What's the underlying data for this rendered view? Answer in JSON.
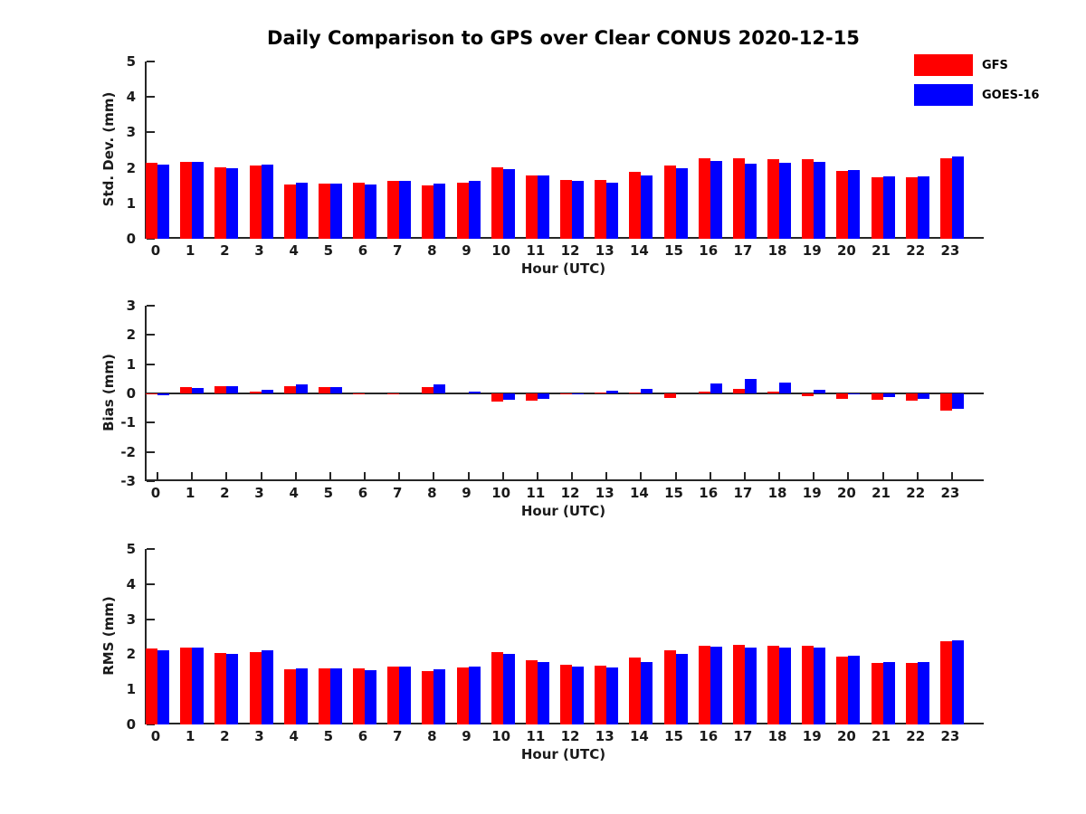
{
  "figure": {
    "title": "Daily Comparison to GPS over Clear CONUS 2020-12-15",
    "background": "#ffffff"
  },
  "legend": {
    "position": "top-right",
    "items": [
      {
        "label": "GFS",
        "color": "#ff0000"
      },
      {
        "label": "GOES-16",
        "color": "#0000ff"
      }
    ]
  },
  "colors": {
    "gfs": "#ff0000",
    "goes16": "#0000ff",
    "axis": "#262626",
    "text": "#1a1a1a",
    "background": "#ffffff"
  },
  "chart_data": [
    {
      "type": "bar",
      "title": "",
      "ylabel": "Std. Dev. (mm)",
      "xlabel": "Hour (UTC)",
      "ylim": [
        0,
        5
      ],
      "yticks": [
        0,
        1,
        2,
        3,
        4,
        5
      ],
      "grid": false,
      "categories": [
        0,
        1,
        2,
        3,
        4,
        5,
        6,
        7,
        8,
        9,
        10,
        11,
        12,
        13,
        14,
        15,
        16,
        17,
        18,
        19,
        20,
        21,
        22,
        23
      ],
      "series": [
        {
          "name": "GFS",
          "color": "#ff0000",
          "values": [
            2.15,
            2.17,
            2.02,
            2.06,
            1.53,
            1.55,
            1.58,
            1.63,
            1.5,
            1.57,
            2.01,
            1.79,
            1.67,
            1.67,
            1.9,
            2.07,
            2.27,
            2.26,
            2.24,
            2.25,
            1.91,
            1.74,
            1.73,
            2.28
          ]
        },
        {
          "name": "GOES-16",
          "color": "#0000ff",
          "values": [
            2.1,
            2.17,
            1.99,
            2.09,
            1.57,
            1.55,
            1.54,
            1.63,
            1.56,
            1.63,
            1.97,
            1.78,
            1.63,
            1.59,
            1.78,
            1.99,
            2.2,
            2.13,
            2.15,
            2.17,
            1.95,
            1.77,
            1.76,
            2.33
          ]
        }
      ]
    },
    {
      "type": "bar",
      "title": "",
      "ylabel": "Bias (mm)",
      "xlabel": "Hour (UTC)",
      "ylim": [
        -3,
        3
      ],
      "yticks": [
        -3,
        -2,
        -1,
        0,
        1,
        2,
        3
      ],
      "grid": false,
      "zero_line": true,
      "categories": [
        0,
        1,
        2,
        3,
        4,
        5,
        6,
        7,
        8,
        9,
        10,
        11,
        12,
        13,
        14,
        15,
        16,
        17,
        18,
        19,
        20,
        21,
        22,
        23
      ],
      "series": [
        {
          "name": "GFS",
          "color": "#ff0000",
          "values": [
            -0.01,
            0.22,
            0.25,
            0.06,
            0.25,
            0.23,
            -0.03,
            -0.03,
            0.21,
            0.0,
            -0.29,
            -0.25,
            -0.04,
            0.02,
            0.02,
            -0.16,
            0.07,
            0.14,
            0.05,
            -0.08,
            -0.18,
            -0.22,
            -0.25,
            -0.58
          ]
        },
        {
          "name": "GOES-16",
          "color": "#0000ff",
          "values": [
            -0.06,
            0.18,
            0.24,
            0.12,
            0.32,
            0.21,
            0.0,
            0.0,
            0.3,
            0.06,
            -0.22,
            -0.19,
            0.01,
            0.1,
            0.15,
            0.0,
            0.33,
            0.48,
            0.37,
            0.12,
            -0.03,
            -0.13,
            -0.2,
            -0.52
          ]
        }
      ]
    },
    {
      "type": "bar",
      "title": "",
      "ylabel": "RMS (mm)",
      "xlabel": "Hour (UTC)",
      "ylim": [
        0,
        5
      ],
      "yticks": [
        0,
        1,
        2,
        3,
        4,
        5
      ],
      "grid": false,
      "categories": [
        0,
        1,
        2,
        3,
        4,
        5,
        6,
        7,
        8,
        9,
        10,
        11,
        12,
        13,
        14,
        15,
        16,
        17,
        18,
        19,
        20,
        21,
        22,
        23
      ],
      "series": [
        {
          "name": "GFS",
          "color": "#ff0000",
          "values": [
            2.16,
            2.18,
            2.03,
            2.07,
            1.56,
            1.59,
            1.6,
            1.65,
            1.53,
            1.62,
            2.05,
            1.82,
            1.69,
            1.68,
            1.9,
            2.11,
            2.25,
            2.26,
            2.25,
            2.24,
            1.93,
            1.76,
            1.76,
            2.37
          ]
        },
        {
          "name": "GOES-16",
          "color": "#0000ff",
          "values": [
            2.11,
            2.18,
            2.0,
            2.11,
            1.59,
            1.59,
            1.54,
            1.65,
            1.57,
            1.65,
            2.01,
            1.79,
            1.65,
            1.62,
            1.79,
            2.02,
            2.22,
            2.18,
            2.18,
            2.18,
            1.97,
            1.78,
            1.79,
            2.39
          ]
        }
      ]
    }
  ]
}
